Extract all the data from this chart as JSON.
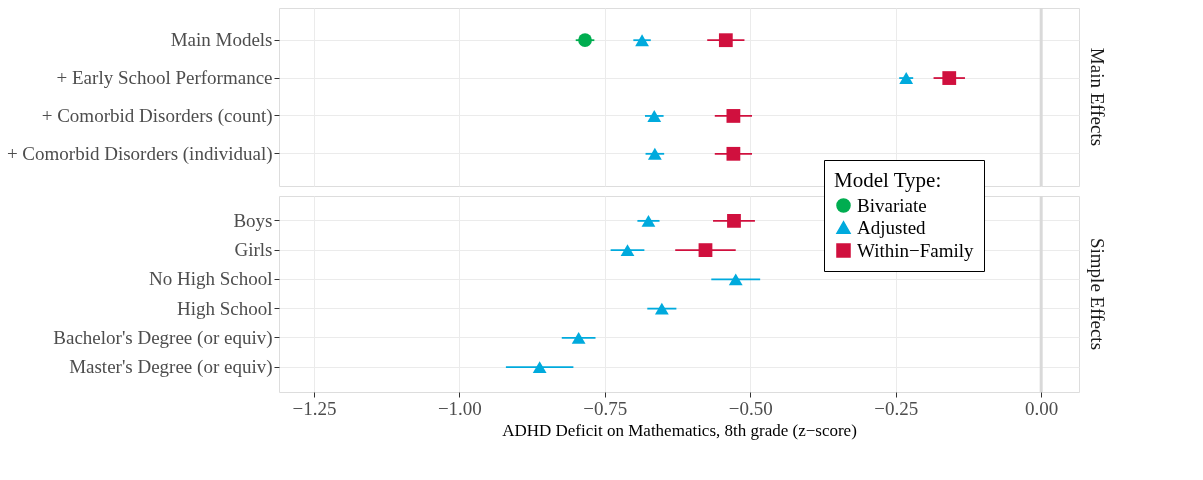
{
  "chart_data": [
    {
      "type": "scatter",
      "orientation": "horizontal",
      "title": "Main Effects",
      "categories": [
        "Main Models",
        "+ Early School Performance",
        "+ Comorbid Disorders (count)",
        "+ Comorbid Disorders (individual)"
      ],
      "series": [
        {
          "color": "#00ad50",
          "marker": "circle",
          "values": [
            -0.784,
            null,
            null,
            null
          ],
          "errors": [
            0.016,
            null,
            null,
            null
          ]
        },
        {
          "color": "#00aadd",
          "marker": "triangle",
          "values": [
            -0.686,
            -0.232,
            -0.665,
            -0.664
          ],
          "errors": [
            0.015,
            0.012,
            0.016,
            0.016
          ]
        },
        {
          "color": "#d0103e",
          "marker": "square",
          "values": [
            -0.542,
            -0.158,
            -0.529,
            -0.529
          ],
          "errors": [
            0.032,
            0.027,
            0.032,
            0.032
          ]
        }
      ],
      "xlim": [
        -1.31,
        0.065
      ],
      "xticks": [
        -1.25,
        -1.0,
        -0.75,
        -0.5,
        -0.25,
        0
      ],
      "ref_lines": [
        {
          "axis": "x",
          "value": 0,
          "color": "#d9d9d9"
        }
      ],
      "grid": true,
      "tick_labels": "y"
    },
    {
      "type": "scatter",
      "orientation": "horizontal",
      "title": "Simple Effects",
      "xlabel": "ADHD Deficit on Mathematics, 8th grade (z−score)",
      "legend_title": "Model Type:",
      "legend": "top right",
      "categories": [
        "Boys",
        "Girls",
        "No High School",
        "High School",
        "Bachelor's Degree (or equiv)",
        "Master's Degree (or equiv)"
      ],
      "series": [
        {
          "name": "Bivariate",
          "color": "#00ad50",
          "marker": "circle",
          "values": [
            null,
            null,
            null,
            null,
            null,
            null
          ],
          "errors": [
            null,
            null,
            null,
            null,
            null,
            null
          ]
        },
        {
          "name": "Adjusted",
          "color": "#00aadd",
          "marker": "triangle",
          "values": [
            -0.675,
            -0.711,
            -0.525,
            -0.652,
            -0.795,
            -0.862
          ],
          "errors": [
            0.019,
            0.029,
            0.042,
            0.025,
            0.029,
            0.058
          ]
        },
        {
          "name": "Within−Family",
          "color": "#d0103e",
          "marker": "square",
          "values": [
            -0.528,
            -0.577,
            null,
            null,
            null,
            null
          ],
          "errors": [
            0.036,
            0.052,
            null,
            null,
            null,
            null
          ]
        }
      ],
      "xlim": [
        -1.31,
        0.065
      ],
      "xticks": [
        {
          "value": -1.25,
          "label": "−1.25"
        },
        {
          "value": -1.0,
          "label": "−1.00"
        },
        {
          "value": -0.75,
          "label": "−0.75"
        },
        {
          "value": -0.5,
          "label": "−0.50"
        },
        {
          "value": -0.25,
          "label": "−0.25"
        },
        {
          "value": 0,
          "label": "0.00"
        }
      ],
      "ref_lines": [
        {
          "axis": "x",
          "value": 0,
          "color": "#d9d9d9"
        }
      ],
      "grid": true
    }
  ]
}
